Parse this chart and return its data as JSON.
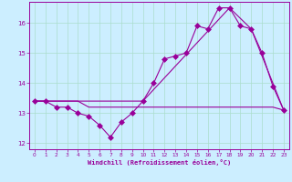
{
  "background_color": "#cceeff",
  "grid_color": "#aaddcc",
  "line_color": "#990099",
  "xlabel": "Windchill (Refroidissement éolien,°C)",
  "xlim": [
    -0.5,
    23.5
  ],
  "ylim": [
    11.8,
    16.7
  ],
  "yticks": [
    12,
    13,
    14,
    15,
    16
  ],
  "xticks": [
    0,
    1,
    2,
    3,
    4,
    5,
    6,
    7,
    8,
    9,
    10,
    11,
    12,
    13,
    14,
    15,
    16,
    17,
    18,
    19,
    20,
    21,
    22,
    23
  ],
  "series1_x": [
    0,
    1,
    2,
    3,
    4,
    5,
    6,
    7,
    8,
    9,
    10,
    11,
    12,
    13,
    14,
    15,
    16,
    17,
    18,
    19,
    20,
    21,
    22,
    23
  ],
  "series1_y": [
    13.4,
    13.4,
    13.2,
    13.2,
    13.0,
    12.9,
    12.6,
    12.2,
    12.7,
    13.0,
    13.4,
    14.0,
    14.8,
    14.9,
    15.0,
    15.9,
    15.8,
    16.5,
    16.5,
    15.9,
    15.8,
    15.0,
    13.9,
    13.1
  ],
  "series2_x": [
    0,
    1,
    2,
    3,
    4,
    5,
    6,
    7,
    8,
    9,
    10,
    19,
    20,
    21,
    22,
    23
  ],
  "series2_y": [
    13.4,
    13.4,
    13.4,
    13.4,
    13.4,
    13.2,
    13.2,
    13.2,
    13.2,
    13.2,
    13.2,
    13.2,
    13.2,
    13.2,
    13.2,
    13.1
  ],
  "series3_x": [
    0,
    10,
    18,
    20,
    23
  ],
  "series3_y": [
    13.4,
    13.4,
    16.5,
    15.8,
    13.1
  ]
}
